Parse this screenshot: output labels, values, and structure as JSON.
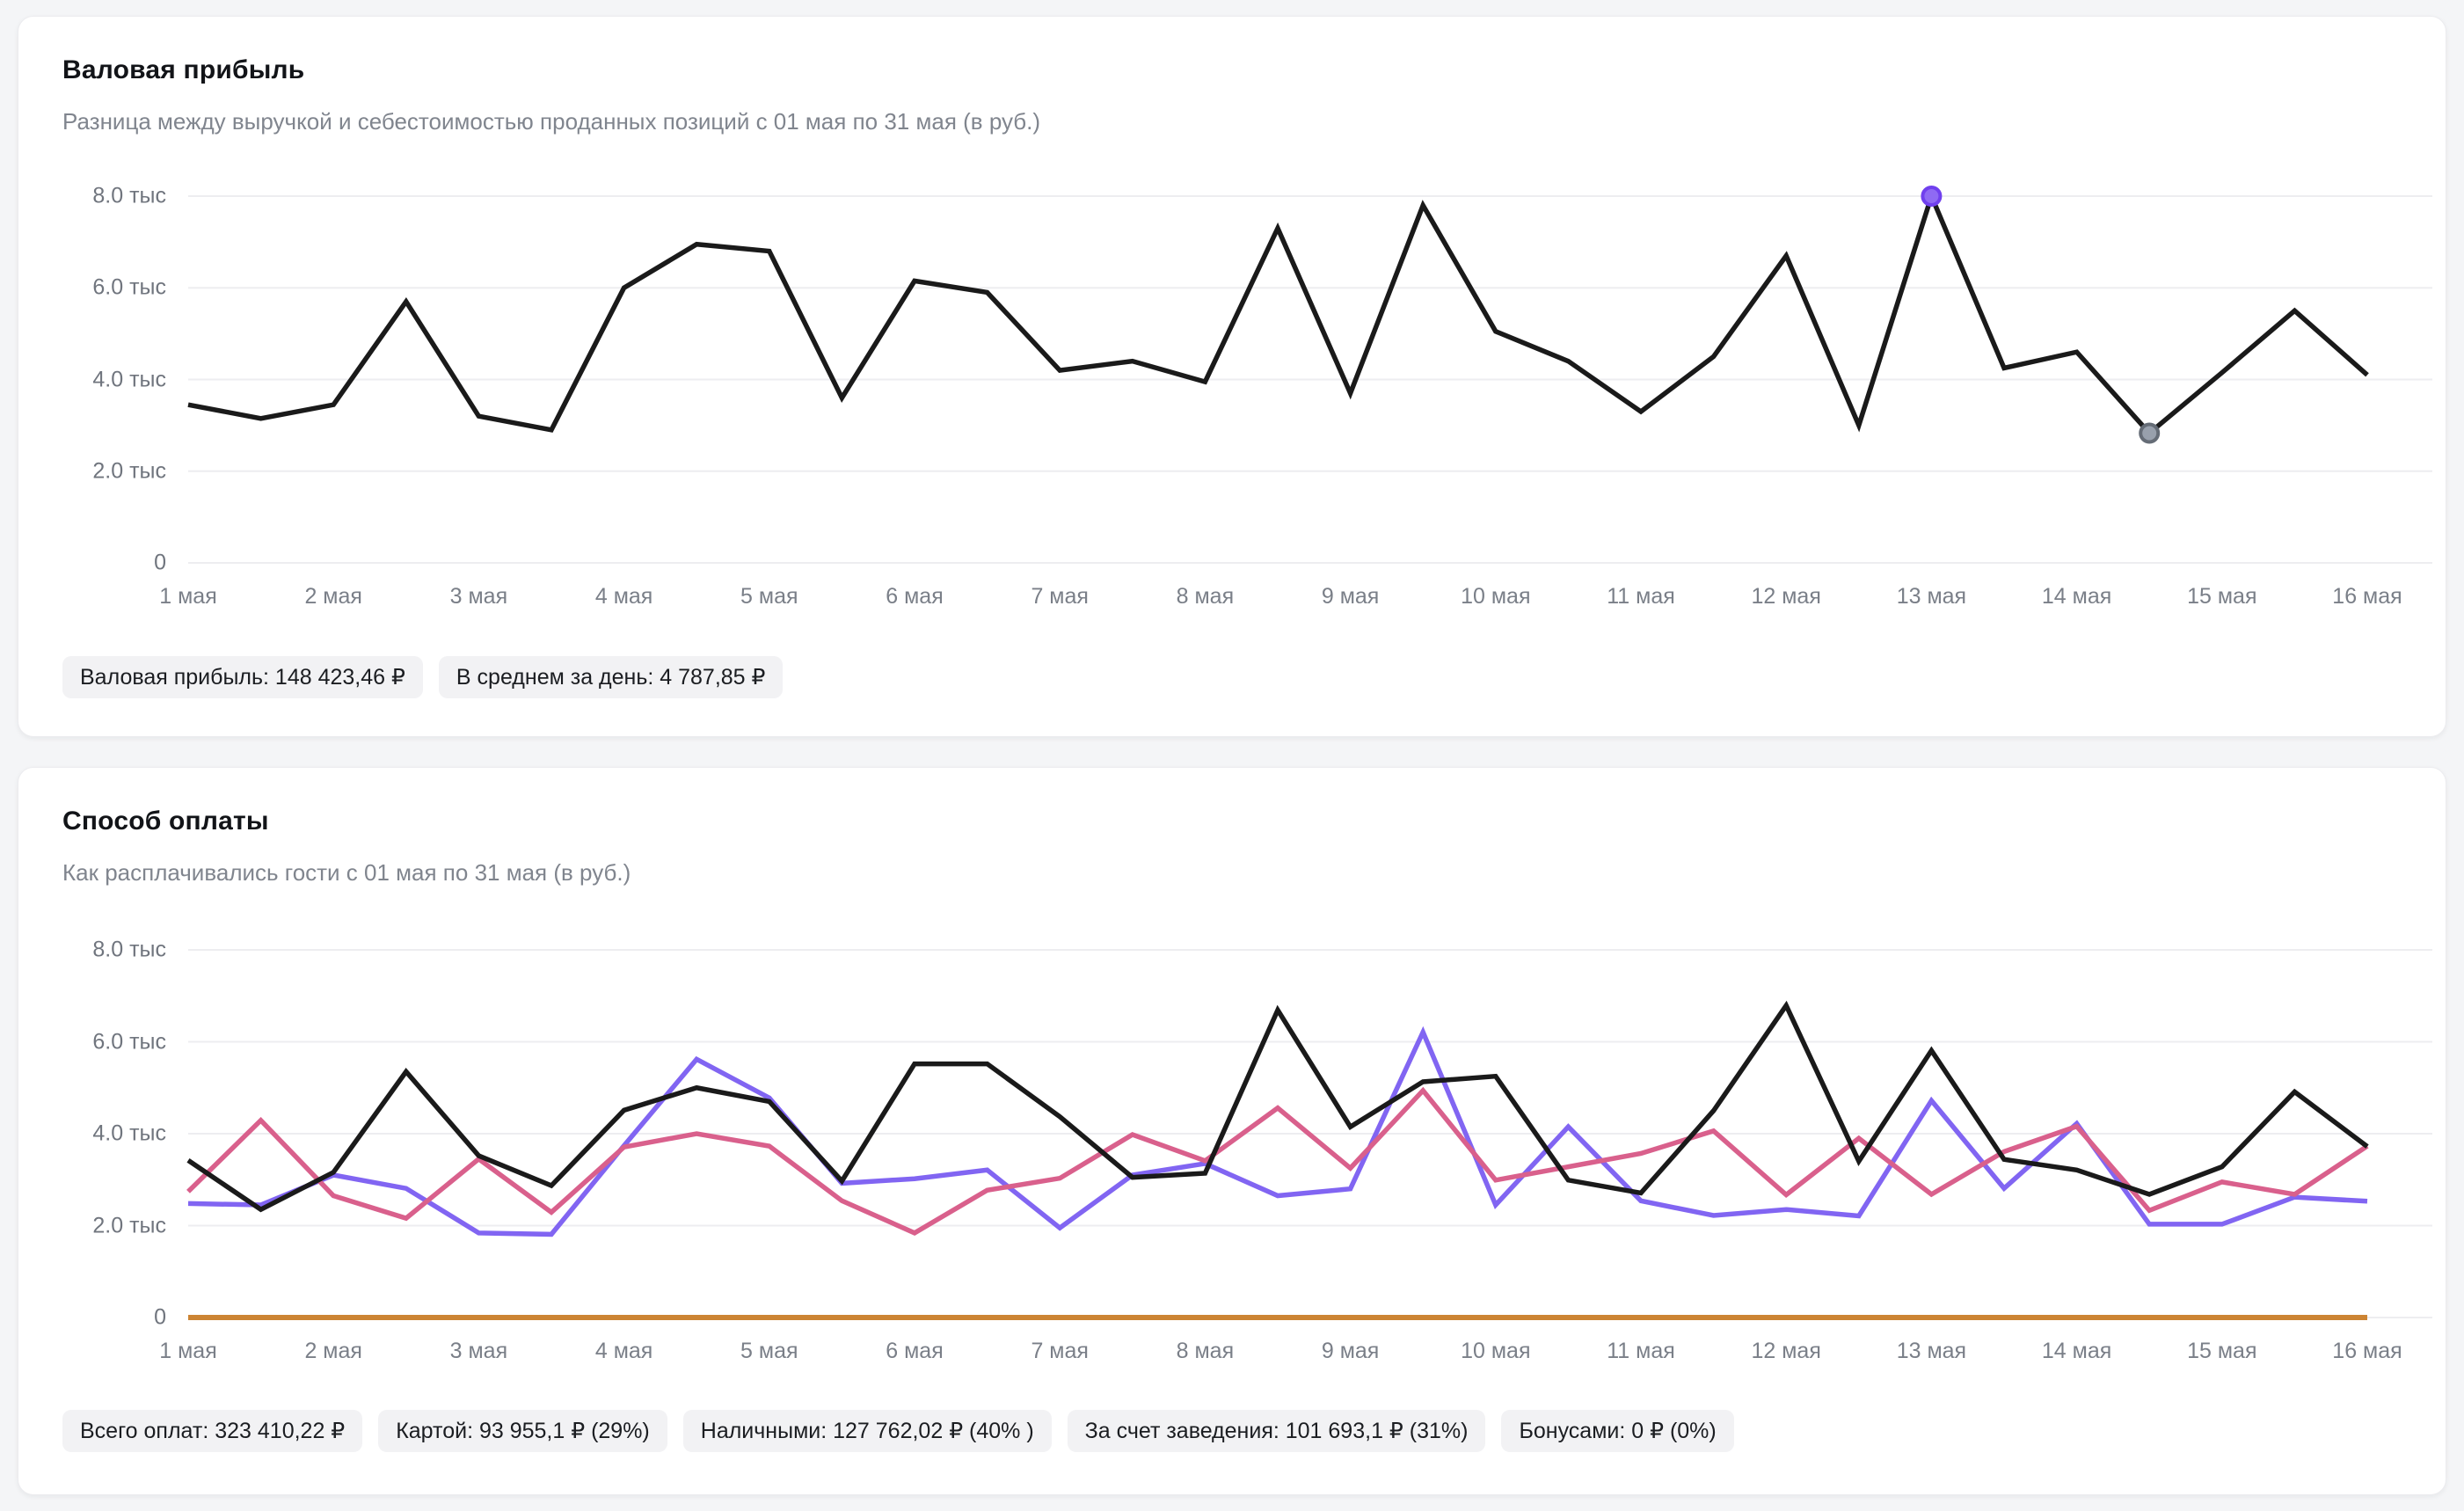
{
  "cards": [
    {
      "title": "Валовая прибыль",
      "subtitle": "Разница между выручкой и себестоимостью проданных позиций с 01 мая по 31 мая (в руб.)",
      "badges": [
        "Валовая прибыль: 148 423,46 ₽",
        "В среднем за день: 4 787,85 ₽"
      ]
    },
    {
      "title": "Способ оплаты",
      "subtitle": "Как расплачивались гости с 01 мая по 31 мая (в руб.)",
      "badges": [
        "Всего оплат: 323 410,22 ₽",
        "Картой: 93 955,1 ₽ (29%)",
        "Наличными: 127 762,02 ₽ (40% )",
        "За счет заведения: 101 693,1 ₽ (31%)",
        "Бонусами: 0 ₽ (0%)"
      ]
    }
  ],
  "chart_data": [
    {
      "type": "line",
      "title": "Валовая прибыль",
      "unit": "тыс руб.",
      "ylim": [
        0,
        8.6
      ],
      "grid": true,
      "y_ticks": [
        {
          "value": 8,
          "label": "8.0 тыс"
        },
        {
          "value": 6,
          "label": "6.0 тыс"
        },
        {
          "value": 4,
          "label": "4.0 тыс"
        },
        {
          "value": 2,
          "label": "2.0 тыс"
        },
        {
          "value": 0,
          "label": "0"
        }
      ],
      "x_tick_labels": [
        "1 мая",
        "2 мая",
        "3 мая",
        "4 мая",
        "5 мая",
        "6 мая",
        "7 мая",
        "8 мая",
        "9 мая",
        "10 мая",
        "11 мая",
        "12 мая",
        "13 мая",
        "14 мая",
        "15 мая",
        "16 мая"
      ],
      "series": [
        {
          "name": "Валовая прибыль",
          "color": "#1a1a1a",
          "values": [
            3.45,
            3.15,
            3.45,
            5.7,
            3.2,
            2.9,
            6.0,
            6.95,
            6.8,
            3.6,
            6.15,
            5.9,
            4.2,
            4.4,
            3.95,
            7.3,
            3.7,
            7.8,
            5.05,
            4.4,
            3.3,
            4.5,
            6.7,
            3.0,
            8.0,
            4.25,
            4.6,
            2.83,
            4.15,
            5.5,
            4.1
          ]
        }
      ],
      "markers": [
        {
          "series": 0,
          "index": 24,
          "fill": "#8f6af3",
          "stroke": "#7040ee",
          "name": "highlight-point-purple"
        },
        {
          "series": 0,
          "index": 27,
          "fill": "#98a0ac",
          "stroke": "#656c76",
          "name": "highlight-point-gray"
        }
      ]
    },
    {
      "type": "line",
      "title": "Способ оплаты",
      "unit": "тыс руб.",
      "ylim": [
        0,
        8.6
      ],
      "grid": true,
      "y_ticks": [
        {
          "value": 8,
          "label": "8.0 тыс"
        },
        {
          "value": 6,
          "label": "6.0 тыс"
        },
        {
          "value": 4,
          "label": "4.0 тыс"
        },
        {
          "value": 2,
          "label": "2.0 тыс"
        },
        {
          "value": 0,
          "label": "0"
        }
      ],
      "x_tick_labels": [
        "1 мая",
        "2 мая",
        "3 мая",
        "4 мая",
        "5 мая",
        "6 мая",
        "7 мая",
        "8 мая",
        "9 мая",
        "10 мая",
        "11 мая",
        "12 мая",
        "13 мая",
        "14 мая",
        "15 мая",
        "16 мая"
      ],
      "series": [
        {
          "name": "Бонусами",
          "color": "#cc8433",
          "values": [
            0,
            0,
            0,
            0,
            0,
            0,
            0,
            0,
            0,
            0,
            0,
            0,
            0,
            0,
            0,
            0,
            0,
            0,
            0,
            0,
            0,
            0,
            0,
            0,
            0,
            0,
            0,
            0,
            0,
            0,
            0
          ]
        },
        {
          "name": "Картой",
          "color": "#8165f2",
          "values": [
            2.48,
            2.45,
            3.1,
            2.81,
            1.84,
            1.81,
            3.74,
            5.62,
            4.78,
            2.92,
            3.02,
            3.21,
            1.95,
            3.1,
            3.35,
            2.65,
            2.8,
            6.21,
            2.45,
            4.15,
            2.54,
            2.22,
            2.35,
            2.21,
            4.72,
            2.81,
            4.22,
            2.03,
            2.03,
            2.62,
            2.53
          ]
        },
        {
          "name": "За счет заведения",
          "color": "#d9608c",
          "values": [
            2.74,
            4.29,
            2.65,
            2.16,
            3.45,
            2.29,
            3.71,
            4.0,
            3.73,
            2.54,
            1.84,
            2.77,
            3.03,
            3.98,
            3.41,
            4.56,
            3.25,
            4.94,
            2.99,
            3.28,
            3.57,
            4.06,
            2.67,
            3.9,
            2.68,
            3.61,
            4.16,
            2.33,
            2.95,
            2.68,
            3.73
          ]
        },
        {
          "name": "Наличными",
          "color": "#1a1a1a",
          "values": [
            3.42,
            2.35,
            3.16,
            5.35,
            3.52,
            2.87,
            4.51,
            5.0,
            4.7,
            2.97,
            5.52,
            5.52,
            4.37,
            3.05,
            3.14,
            6.69,
            4.15,
            5.13,
            5.25,
            2.99,
            2.71,
            4.5,
            6.79,
            3.4,
            5.81,
            3.44,
            3.21,
            2.68,
            3.28,
            4.91,
            3.72
          ]
        }
      ],
      "markers": []
    }
  ]
}
